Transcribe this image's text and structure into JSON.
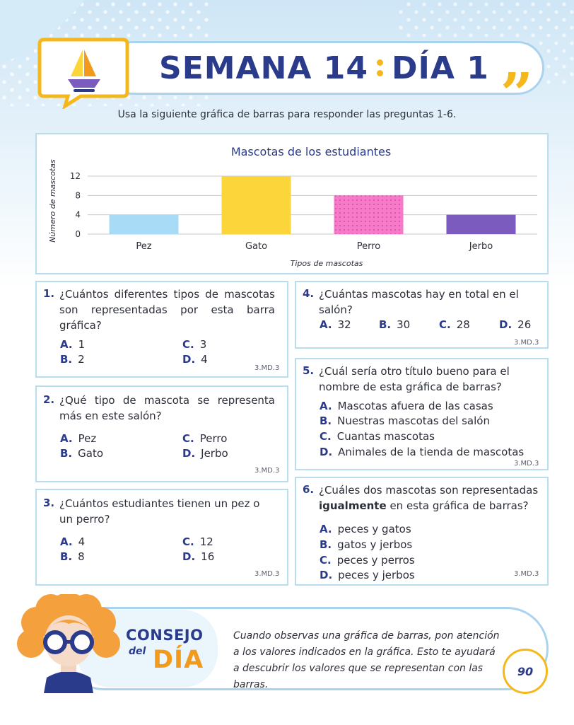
{
  "header": {
    "title_week": "SEMANA 14",
    "title_day": "DÍA 1",
    "quote_mark": "”"
  },
  "instructions": "Usa la siguiente gráfica de barras para responder las preguntas 1-6.",
  "chart_data": {
    "type": "bar",
    "title": "Mascotas de los estudiantes",
    "xlabel": "Tipos de mascotas",
    "ylabel": "Número de mascotas",
    "categories": [
      "Pez",
      "Gato",
      "Perro",
      "Jerbo"
    ],
    "values": [
      4,
      12,
      8,
      4
    ],
    "yticks": [
      0,
      4,
      8,
      12
    ],
    "ylim": [
      0,
      12
    ],
    "grid": true,
    "colors": [
      "#a8dcf6",
      "#fcd53a",
      "#f67ac8",
      "#7b5bbd"
    ]
  },
  "questions": [
    {
      "num": "1.",
      "text": "¿Cuántos diferentes tipos de mascotas son representadas por esta barra gráfica?",
      "options": [
        {
          "letter": "A.",
          "text": "1"
        },
        {
          "letter": "B.",
          "text": "2"
        },
        {
          "letter": "C.",
          "text": "3"
        },
        {
          "letter": "D.",
          "text": "4"
        }
      ],
      "standard": "3.MD.3"
    },
    {
      "num": "2.",
      "text": "¿Qué tipo de mascota se representa más en este salón?",
      "options": [
        {
          "letter": "A.",
          "text": "Pez"
        },
        {
          "letter": "B.",
          "text": "Gato"
        },
        {
          "letter": "C.",
          "text": "Perro"
        },
        {
          "letter": "D.",
          "text": "Jerbo"
        }
      ],
      "standard": "3.MD.3"
    },
    {
      "num": "3.",
      "text": "¿Cuántos estudiantes tienen un pez o un perro?",
      "options": [
        {
          "letter": "A.",
          "text": "4"
        },
        {
          "letter": "B.",
          "text": "8"
        },
        {
          "letter": "C.",
          "text": "12"
        },
        {
          "letter": "D.",
          "text": "16"
        }
      ],
      "standard": "3.MD.3"
    },
    {
      "num": "4.",
      "text": "¿Cuántas mascotas hay en total en el salón?",
      "options": [
        {
          "letter": "A.",
          "text": "32"
        },
        {
          "letter": "B.",
          "text": "30"
        },
        {
          "letter": "C.",
          "text": "28"
        },
        {
          "letter": "D.",
          "text": "26"
        }
      ],
      "standard": "3.MD.3"
    },
    {
      "num": "5.",
      "text": "¿Cuál sería otro título bueno para el nombre de esta gráfica de barras?",
      "options": [
        {
          "letter": "A.",
          "text": "Mascotas afuera de las casas"
        },
        {
          "letter": "B.",
          "text": "Nuestras mascotas del salón"
        },
        {
          "letter": "C.",
          "text": "Cuantas mascotas"
        },
        {
          "letter": "D.",
          "text": "Animales de la tienda de mascotas"
        }
      ],
      "standard": "3.MD.3"
    },
    {
      "num": "6.",
      "text_before": "¿Cuáles dos mascotas son representadas",
      "text_bold": "igualmente",
      "text_after": "en esta gráfica de barras?",
      "options": [
        {
          "letter": "A.",
          "text": "peces y gatos"
        },
        {
          "letter": "B.",
          "text": "gatos y jerbos"
        },
        {
          "letter": "C.",
          "text": "peces y perros"
        },
        {
          "letter": "D.",
          "text": "peces y jerbos"
        }
      ],
      "standard": "3.MD.3"
    }
  ],
  "tip": {
    "consejo": "CONSEJO",
    "del": "del",
    "dia": "DÍA",
    "text": "Cuando observas una gráfica de barras, pon atención a los valores indicados en la gráfica. Esto te ayudará a descubrir los valores que se representan con las barras."
  },
  "page_number": "90"
}
